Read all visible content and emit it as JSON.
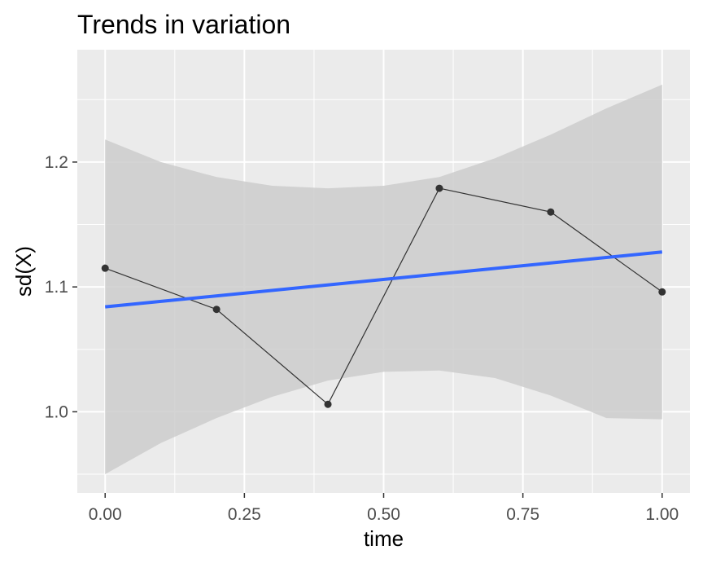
{
  "chart_data": {
    "type": "line",
    "title": "Trends in variation",
    "xlabel": "time",
    "ylabel": "sd(X)",
    "x": [
      0.0,
      0.2,
      0.4,
      0.6,
      0.8,
      1.0
    ],
    "y": [
      1.115,
      1.082,
      1.006,
      1.179,
      1.16,
      1.096
    ],
    "xlim": [
      -0.05,
      1.05
    ],
    "ylim": [
      0.935,
      1.29
    ],
    "x_ticks": [
      0.0,
      0.25,
      0.5,
      0.75,
      1.0
    ],
    "x_tick_labels": [
      "0.00",
      "0.25",
      "0.50",
      "0.75",
      "1.00"
    ],
    "y_ticks": [
      1.0,
      1.1,
      1.2
    ],
    "y_tick_labels": [
      "1.0",
      "1.1",
      "1.2"
    ],
    "trend": {
      "method": "linear fit",
      "x": [
        0.0,
        1.0
      ],
      "y": [
        1.084,
        1.128
      ]
    },
    "confidence_band": {
      "x": [
        0.0,
        0.1,
        0.2,
        0.3,
        0.4,
        0.5,
        0.6,
        0.7,
        0.8,
        0.9,
        1.0
      ],
      "lower": [
        0.95,
        0.975,
        0.995,
        1.012,
        1.025,
        1.032,
        1.033,
        1.027,
        1.013,
        0.995,
        0.994
      ],
      "upper": [
        1.218,
        1.2,
        1.188,
        1.181,
        1.179,
        1.181,
        1.188,
        1.203,
        1.222,
        1.243,
        1.262
      ]
    },
    "grid": true,
    "legend": "none",
    "colors": {
      "panel": "#ebebeb",
      "grid": "#ffffff",
      "line": "#333333",
      "points": "#333333",
      "trend": "#3366ff",
      "band": "#cccccc"
    }
  }
}
